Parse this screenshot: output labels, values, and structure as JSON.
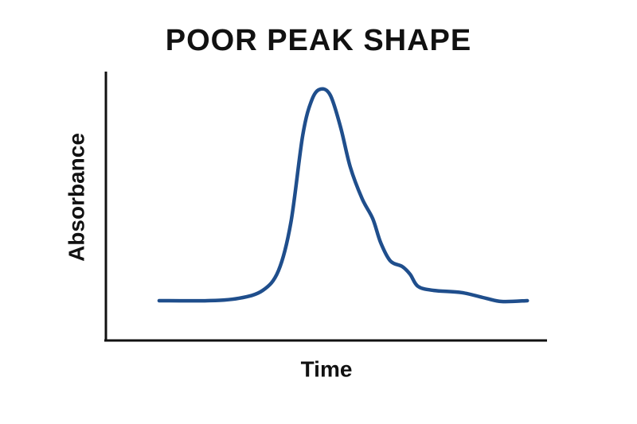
{
  "chart_data": {
    "type": "line",
    "title": "POOR PEAK SHAPE",
    "x_label": "Time",
    "y_label": "Absorbance",
    "x": [
      12.1,
      23.0,
      30.2,
      35.6,
      39.2,
      42.0,
      44.7,
      46.8,
      48.8,
      51.0,
      53.3,
      55.5,
      58.2,
      60.6,
      62.4,
      64.6,
      67.3,
      69.1,
      70.9,
      74.5,
      80.8,
      86.3,
      89.9,
      95.7
    ],
    "series": [
      {
        "name": "Absorbance",
        "color": "#1f4e8c",
        "values": [
          14.8,
          14.8,
          15.7,
          18.6,
          26.0,
          43.8,
          76.3,
          89.6,
          93.5,
          91.1,
          79.3,
          64.5,
          52.7,
          45.3,
          36.4,
          29.6,
          27.5,
          24.6,
          20.1,
          18.6,
          17.8,
          15.7,
          14.5,
          14.8
        ]
      }
    ],
    "xlim": [
      0,
      100
    ],
    "ylim": [
      0,
      100
    ]
  }
}
